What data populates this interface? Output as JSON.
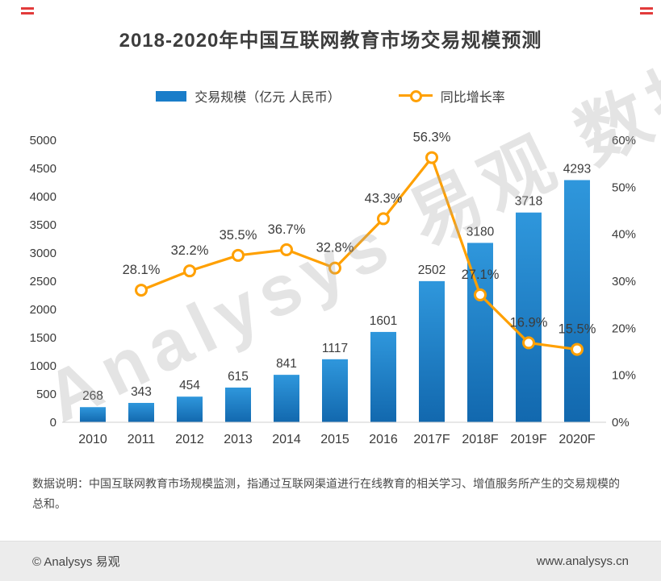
{
  "page": {
    "title": "2018-2020年中国互联网教育市场交易规模预测",
    "watermark": "Analysys 易观 数据",
    "note_label": "数据说明：",
    "note_text": "中国互联网教育市场规模监测，指通过互联网渠道进行在线教育的相关学习、增值服务所产生的交易规模的总和。",
    "footer_left": "© Analysys 易观",
    "footer_right": "www.analysys.cn"
  },
  "legend": {
    "bars_label": "交易规模（亿元 人民币）",
    "line_label": "同比增长率"
  },
  "colors": {
    "bar_top": "#2f97dc",
    "bar_bottom": "#1268ae",
    "bar_flat": "#1a7dc9",
    "line": "#ffa000",
    "marker_fill": "#ffffff",
    "value_label": "#3c3c3c",
    "axis_label": "#3a3a3a",
    "axis_line": "#cfcfcf"
  },
  "chart_data": {
    "type": "bar",
    "subtype": "bar+line-combo",
    "title": "2018-2020年中国互联网教育市场交易规模预测",
    "categories": [
      "2010",
      "2011",
      "2012",
      "2013",
      "2014",
      "2015",
      "2016",
      "2017F",
      "2018F",
      "2019F",
      "2020F"
    ],
    "series": [
      {
        "name": "交易规模（亿元 人民币）",
        "type": "bar",
        "axis": "left",
        "values": [
          268,
          343,
          454,
          615,
          841,
          1117,
          1601,
          2502,
          3180,
          3718,
          4293
        ]
      },
      {
        "name": "同比增长率",
        "type": "line",
        "axis": "right",
        "unit": "%",
        "values": [
          null,
          28.1,
          32.2,
          35.5,
          36.7,
          32.8,
          43.3,
          56.3,
          27.1,
          16.9,
          15.5
        ]
      }
    ],
    "left_axis": {
      "min": 0,
      "max": 5000,
      "step": 500
    },
    "right_axis": {
      "min": 0,
      "max": 60,
      "step": 10,
      "unit": "%"
    },
    "grid": false,
    "legend_position": "top"
  }
}
